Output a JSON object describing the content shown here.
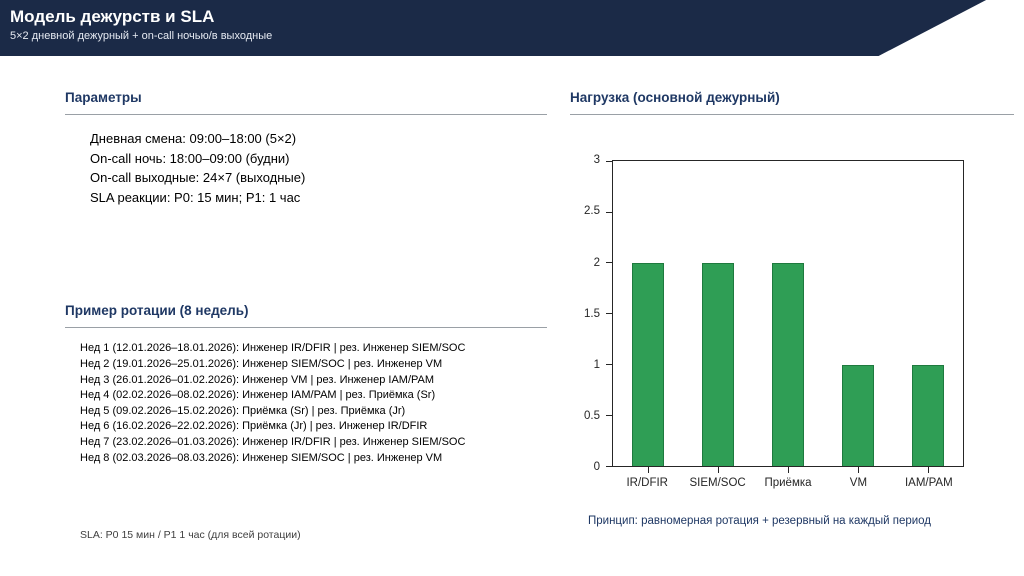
{
  "slide": {
    "title": "Модель дежурств и SLA",
    "subtitle": "5×2 дневной дежурный + on-call ночью/в выходные"
  },
  "colors": {
    "header_bg": "#1b2a47",
    "heading": "#1f3864",
    "bar_green": "#2f9e55"
  },
  "parameters": {
    "heading": "Параметры",
    "lines": [
      "Дневная смена: 09:00–18:00 (5×2)",
      "On-call ночь: 18:00–09:00 (будни)",
      "On-call выходные: 24×7 (выходные)",
      "SLA реакции: P0: 15 мин; P1: 1 час"
    ]
  },
  "rotation": {
    "heading": "Пример ротации (8 недель)",
    "lines": [
      "Нед 1 (12.01.2026–18.01.2026): Инженер IR/DFIR | рез. Инженер SIEM/SOC",
      "Нед 2 (19.01.2026–25.01.2026): Инженер SIEM/SOC | рез. Инженер VM",
      "Нед 3 (26.01.2026–01.02.2026): Инженер VM | рез. Инженер IAM/PAM",
      "Нед 4 (02.02.2026–08.02.2026): Инженер IAM/PAM | рез. Приёмка (Sr)",
      "Нед 5 (09.02.2026–15.02.2026): Приёмка (Sr) | рез. Приёмка (Jr)",
      "Нед 6 (16.02.2026–22.02.2026): Приёмка (Jr) | рез. Инженер IR/DFIR",
      "Нед 7 (23.02.2026–01.03.2026): Инженер IR/DFIR | рез. Инженер SIEM/SOC",
      "Нед 8 (02.03.2026–08.03.2026): Инженер SIEM/SOC | рез. Инженер VM"
    ],
    "footer": "SLA: P0 15 мин / P1 1 час (для всей ротации)"
  },
  "load": {
    "heading": "Нагрузка (основной дежурный)",
    "caption": "Принцип: равномерная ротация + резервный на каждый период"
  },
  "chart_data": {
    "type": "bar",
    "categories": [
      "IR/DFIR",
      "SIEM/SOC",
      "Приёмка",
      "VM",
      "IAM/PAM"
    ],
    "values": [
      2,
      2,
      2,
      1,
      1
    ],
    "title": "",
    "xlabel": "",
    "ylabel": "",
    "ylim": [
      0,
      3
    ],
    "ytick_step": 0.5,
    "bar_color": "#2f9e55",
    "grid": false,
    "legend": false
  }
}
